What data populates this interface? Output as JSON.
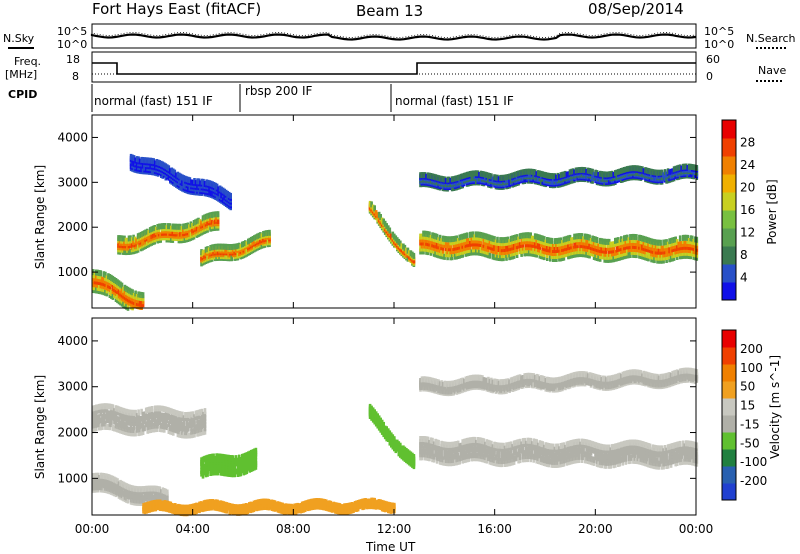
{
  "header": {
    "station": "Fort Hays East (fitACF)",
    "beam": "Beam 13",
    "date": "08/Sep/2014"
  },
  "side_labels": {
    "nsky": "N.Sky",
    "freq": "Freq.",
    "mhz": "[MHz]",
    "cpid": "CPID",
    "nsearch": "N.Search",
    "nave": "Nave",
    "nsky_top": "10^5",
    "nsky_bottom": "10^0",
    "nsearch_top": "10^5",
    "nsearch_bottom": "10^0",
    "freq_top": "18",
    "freq_bottom": "8",
    "nave_top": "60",
    "nave_bottom": "0"
  },
  "cpid_segments": [
    {
      "label": "normal (fast) 151 IF"
    },
    {
      "label": "rbsp 200 IF"
    },
    {
      "label": "normal (fast) 151 IF"
    }
  ],
  "colors": {
    "power_scale": [
      "#1010e8",
      "#2850c8",
      "#3a7a50",
      "#58a050",
      "#78c040",
      "#c8d020",
      "#f0b000",
      "#f08000",
      "#f04000",
      "#e80000"
    ],
    "velocity_scale": [
      "#2040d0",
      "#2860b0",
      "#208040",
      "#60c030",
      "#b0b0a8",
      "#c8c8c0",
      "#f0a020",
      "#f08000",
      "#f04000",
      "#e80000"
    ]
  },
  "chart_data": [
    {
      "type": "heatmap",
      "name": "power",
      "ylabel": "Slant Range [km]",
      "yticks": [
        "1000",
        "2000",
        "3000",
        "4000"
      ],
      "ylim": [
        200,
        4500
      ],
      "xlim": [
        0,
        24
      ],
      "colorbar_label": "Power [dB]",
      "colorbar_ticks": [
        "4",
        "8",
        "12",
        "16",
        "20",
        "24",
        "28"
      ],
      "colorbar_range": [
        0,
        32
      ]
    },
    {
      "type": "heatmap",
      "name": "velocity",
      "xlabel": "Time UT",
      "xticks": [
        "00:00",
        "04:00",
        "08:00",
        "12:00",
        "16:00",
        "20:00",
        "00:00"
      ],
      "ylabel": "Slant Range [km]",
      "yticks": [
        "1000",
        "2000",
        "3000",
        "4000"
      ],
      "ylim": [
        200,
        4500
      ],
      "xlim": [
        0,
        24
      ],
      "colorbar_label": "Velocity [m s^-1]",
      "colorbar_ticks": [
        "200",
        "100",
        "50",
        "15",
        "-15",
        "-50",
        "-100",
        "-200"
      ],
      "colorbar_range": [
        -250,
        250
      ]
    }
  ]
}
